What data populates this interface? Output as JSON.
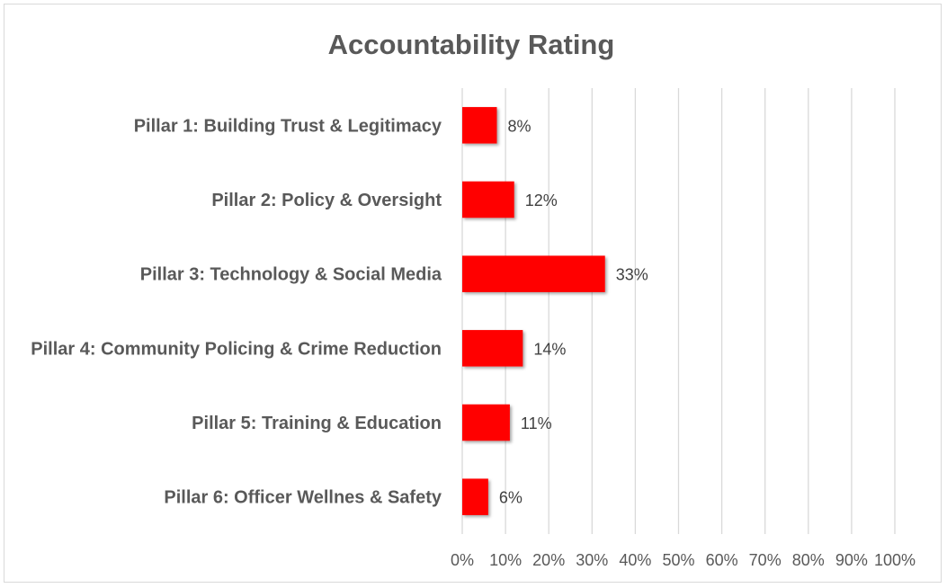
{
  "chart_data": {
    "type": "bar",
    "orientation": "horizontal",
    "title": "Accountability Rating",
    "xlabel": "",
    "ylabel": "",
    "categories": [
      "Pillar 1: Building Trust & Legitimacy",
      "Pillar 2: Policy & Oversight",
      "Pillar 3: Technology & Social Media",
      "Pillar 4: Community Policing & Crime Reduction",
      "Pillar 5: Training & Education",
      "Pillar 6: Officer Wellnes & Safety"
    ],
    "values": [
      0.08,
      0.12,
      0.33,
      0.14,
      0.11,
      0.06
    ],
    "data_labels": [
      "8%",
      "12%",
      "33%",
      "14%",
      "11%",
      "6%"
    ],
    "xlim": [
      0,
      1
    ],
    "x_ticks": [
      0,
      0.1,
      0.2,
      0.3,
      0.4,
      0.5,
      0.6,
      0.7,
      0.8,
      0.9,
      1.0
    ],
    "x_tick_labels": [
      "0%",
      "10%",
      "20%",
      "30%",
      "40%",
      "50%",
      "60%",
      "70%",
      "80%",
      "90%",
      "100%"
    ],
    "grid": "vertical",
    "legend": "none",
    "bar_color": "#ff0000",
    "grid_color": "#d9d9d9"
  }
}
